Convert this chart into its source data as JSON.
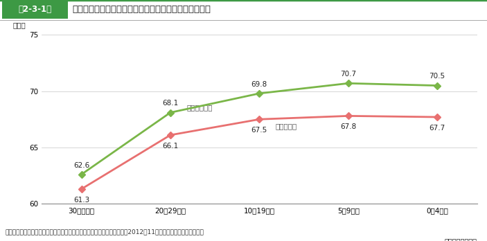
{
  "title": "規模別・事業承継時期別の経営者の平均引退年齢の推移",
  "title_box_label": "第2-3-1図",
  "x_labels": [
    "30年以上前",
    "20～29年前",
    "10～19年前",
    "5～9年前",
    "0～4年前"
  ],
  "x_footnote": "（事業承継時期）",
  "small_biz_values": [
    62.6,
    68.1,
    69.8,
    70.7,
    70.5
  ],
  "mid_biz_values": [
    61.3,
    66.1,
    67.5,
    67.8,
    67.7
  ],
  "small_biz_label": "小規模事業者",
  "mid_biz_label": "中規模企業",
  "small_biz_color": "#7ab648",
  "mid_biz_color": "#e87070",
  "y_label": "（歳）",
  "ylim": [
    60,
    75
  ],
  "yticks": [
    60,
    65,
    70,
    75
  ],
  "footer": "資料：中小企業庁委託「中小企業の事業承継に関するアンケート調査」（2012年11月、（株）野村総合研究所）",
  "header_bg_color": "#3d9944",
  "header_text_color": "#ffffff",
  "header_label_color": "#222222",
  "border_color": "#3d9944",
  "grid_color": "#d0d0d0",
  "background_color": "#ffffff"
}
